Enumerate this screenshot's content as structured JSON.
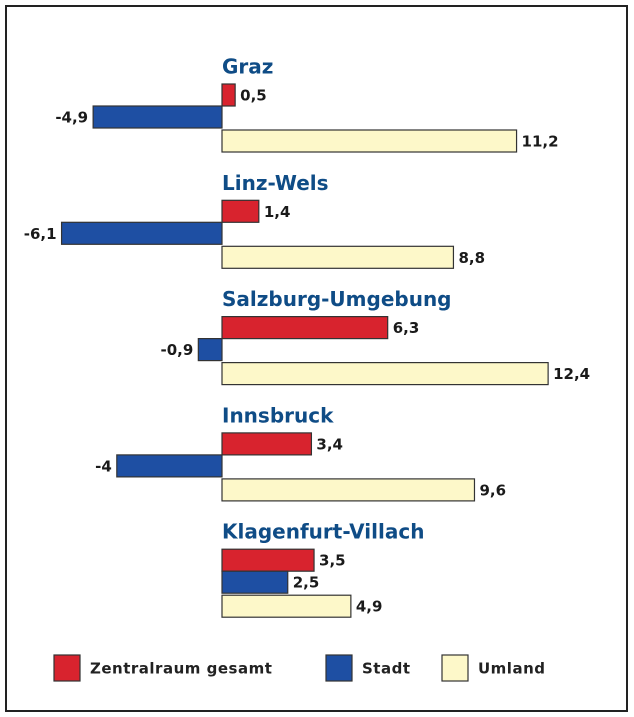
{
  "chart_data": {
    "type": "bar",
    "orientation": "horizontal",
    "categories": [
      "Graz",
      "Linz-Wels",
      "Salzburg-Umgebung",
      "Innsbruck",
      "Klagenfurt-Villach"
    ],
    "series": [
      {
        "name": "Zentralraum gesamt",
        "color": "#d8232e",
        "values": [
          0.5,
          1.4,
          6.3,
          3.4,
          3.5
        ],
        "value_labels": [
          "0,5",
          "1,4",
          "6,3",
          "3,4",
          "3,5"
        ]
      },
      {
        "name": "Stadt",
        "color": "#1e4fa3",
        "values": [
          -4.9,
          -6.1,
          -0.9,
          -4,
          2.5
        ],
        "value_labels": [
          "-4,9",
          "-6,1",
          "-0,9",
          "-4",
          "2,5"
        ]
      },
      {
        "name": "Umland",
        "color": "#fdf8c9",
        "values": [
          11.2,
          8.8,
          12.4,
          9.6,
          4.9
        ],
        "value_labels": [
          "11,2",
          "8,8",
          "12,4",
          "9,6",
          "4,9"
        ]
      }
    ]
  }
}
